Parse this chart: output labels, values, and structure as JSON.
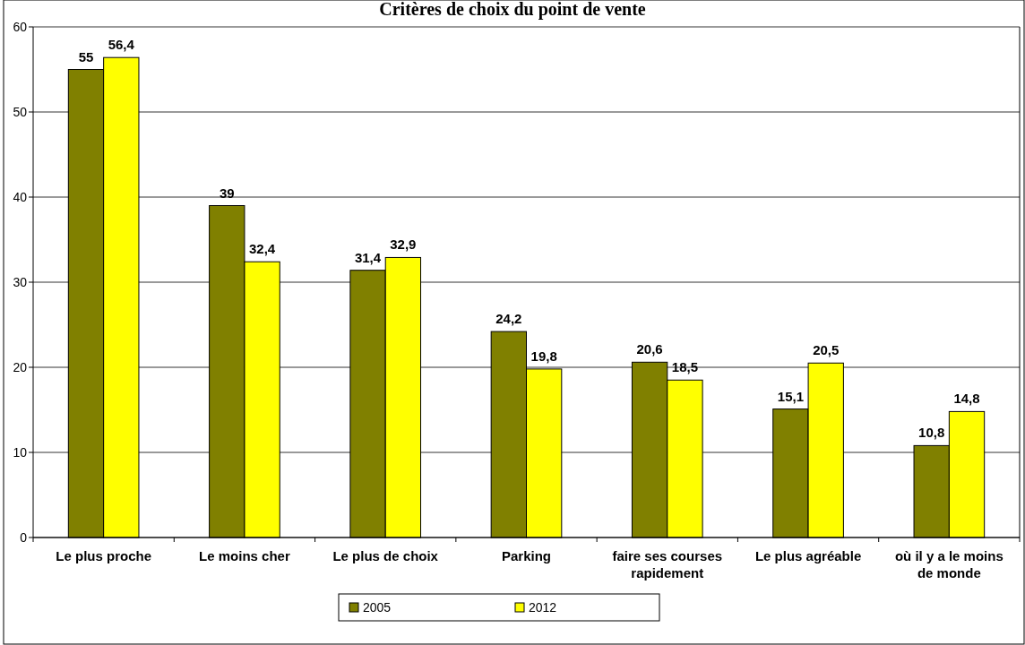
{
  "chart_data": {
    "type": "bar",
    "title": "Critères de choix du point de vente",
    "categories": [
      "Le plus proche",
      "Le moins cher",
      "Le plus de choix",
      "Parking",
      "faire ses courses rapidement",
      "Le plus agréable",
      "où il y a le moins de monde"
    ],
    "series": [
      {
        "name": "2005",
        "color": "#808000",
        "values": [
          55,
          39,
          31.4,
          24.2,
          20.6,
          15.1,
          10.8
        ],
        "value_labels": [
          "55",
          "39",
          "31,4",
          "24,2",
          "20,6",
          "15,1",
          "10,8"
        ]
      },
      {
        "name": "2012",
        "color": "#ffff00",
        "values": [
          56.4,
          32.4,
          32.9,
          19.8,
          18.5,
          20.5,
          14.8
        ],
        "value_labels": [
          "56,4",
          "32,4",
          "32,9",
          "19,8",
          "18,5",
          "20,5",
          "14,8"
        ]
      }
    ],
    "ylim": [
      0,
      60
    ],
    "yticks": [
      0,
      10,
      20,
      30,
      40,
      50,
      60
    ],
    "grid": "y",
    "legend": "bottom"
  }
}
